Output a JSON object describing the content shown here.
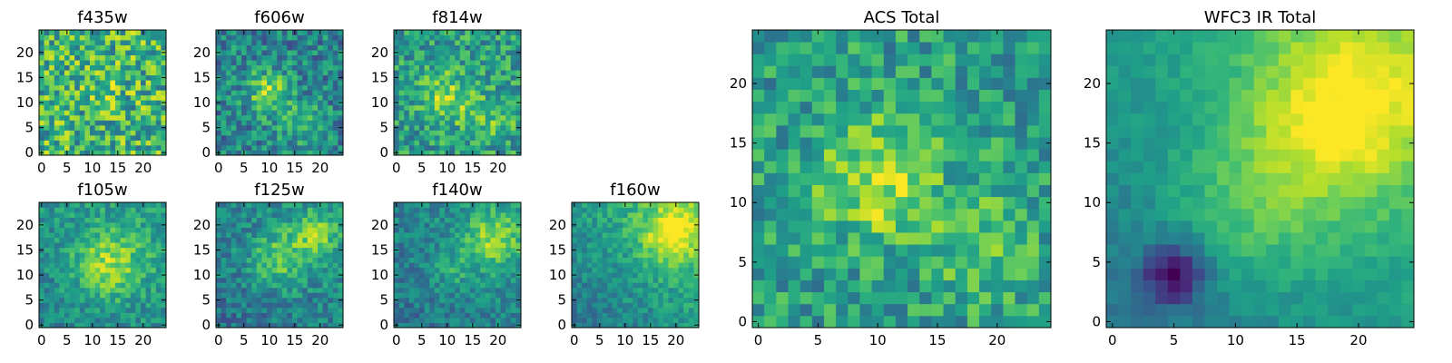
{
  "colormap": {
    "name": "viridis",
    "stops": [
      "#440154",
      "#482878",
      "#3e4989",
      "#31688e",
      "#26828e",
      "#1f9e89",
      "#35b779",
      "#6ece58",
      "#b5de2b",
      "#fde725"
    ]
  },
  "chart_data": [
    {
      "type": "heatmap",
      "title": "f435w",
      "shape": [
        25,
        25
      ],
      "xticks": [
        0,
        5,
        10,
        15,
        20
      ],
      "yticks": [
        0,
        5,
        10,
        15,
        20
      ],
      "xlim": [
        -0.5,
        24.5
      ],
      "ylim": [
        -0.5,
        24.5
      ],
      "field": "noise",
      "peaks": [
        [
          13,
          12,
          2.3,
          0.15
        ]
      ],
      "base": 0.65,
      "noise": 0.3
    },
    {
      "type": "heatmap",
      "title": "f606w",
      "shape": [
        25,
        25
      ],
      "xticks": [
        0,
        5,
        10,
        15,
        20
      ],
      "yticks": [
        0,
        5,
        10,
        15,
        20
      ],
      "xlim": [
        -0.5,
        24.5
      ],
      "ylim": [
        -0.5,
        24.5
      ],
      "field": "blob",
      "peaks": [
        [
          10,
          12,
          3,
          0.4
        ],
        [
          17,
          6,
          3,
          0.25
        ]
      ],
      "base": 0.45,
      "noise": 0.22
    },
    {
      "type": "heatmap",
      "title": "f814w",
      "shape": [
        25,
        25
      ],
      "xticks": [
        0,
        5,
        10,
        15,
        20
      ],
      "yticks": [
        0,
        5,
        10,
        15,
        20
      ],
      "xlim": [
        -0.5,
        24.5
      ],
      "ylim": [
        -0.5,
        24.5
      ],
      "field": "blob",
      "peaks": [
        [
          10,
          11,
          3.5,
          0.3
        ],
        [
          19,
          7,
          3,
          0.2
        ]
      ],
      "base": 0.55,
      "noise": 0.22
    },
    {
      "type": "heatmap",
      "title": "ACS Total",
      "shape": [
        25,
        25
      ],
      "xticks": [
        0,
        5,
        10,
        15,
        20
      ],
      "yticks": [
        0,
        5,
        10,
        15,
        20
      ],
      "xlim": [
        -0.5,
        24.5
      ],
      "ylim": [
        -0.5,
        24.5
      ],
      "field": "blob",
      "peaks": [
        [
          10,
          12,
          3.5,
          0.35
        ],
        [
          19,
          6,
          3,
          0.2
        ]
      ],
      "base": 0.55,
      "noise": 0.2
    },
    {
      "type": "heatmap",
      "title": "f105w",
      "shape": [
        25,
        25
      ],
      "xticks": [
        0,
        5,
        10,
        15,
        20
      ],
      "yticks": [
        0,
        5,
        10,
        15,
        20
      ],
      "xlim": [
        -0.5,
        24.5
      ],
      "ylim": [
        -0.5,
        24.5
      ],
      "field": "diffuse",
      "peaks": [
        [
          13,
          12,
          5,
          0.35
        ]
      ],
      "base": 0.55,
      "noise": 0.15
    },
    {
      "type": "heatmap",
      "title": "f125w",
      "shape": [
        25,
        25
      ],
      "xticks": [
        0,
        5,
        10,
        15,
        20
      ],
      "yticks": [
        0,
        5,
        10,
        15,
        20
      ],
      "xlim": [
        -0.5,
        24.5
      ],
      "ylim": [
        -0.5,
        24.5
      ],
      "field": "diffuse",
      "peaks": [
        [
          12,
          13,
          4,
          0.3
        ],
        [
          19,
          18,
          3,
          0.3
        ]
      ],
      "base": 0.5,
      "noise": 0.16
    },
    {
      "type": "heatmap",
      "title": "f140w",
      "shape": [
        25,
        25
      ],
      "xticks": [
        0,
        5,
        10,
        15,
        20
      ],
      "yticks": [
        0,
        5,
        10,
        15,
        20
      ],
      "xlim": [
        -0.5,
        24.5
      ],
      "ylim": [
        -0.5,
        24.5
      ],
      "field": "diffuse",
      "peaks": [
        [
          19,
          17,
          4,
          0.35
        ],
        [
          11,
          11,
          3,
          0.15
        ]
      ],
      "base": 0.5,
      "noise": 0.14
    },
    {
      "type": "heatmap",
      "title": "f160w",
      "shape": [
        25,
        25
      ],
      "xticks": [
        0,
        5,
        10,
        15,
        20
      ],
      "yticks": [
        0,
        5,
        10,
        15,
        20
      ],
      "xlim": [
        -0.5,
        24.5
      ],
      "ylim": [
        -0.5,
        24.5
      ],
      "field": "gradient",
      "peaks": [
        [
          19,
          18,
          4,
          0.4
        ]
      ],
      "base": 0.5,
      "noise": 0.12
    },
    {
      "type": "heatmap",
      "title": "WFC3 IR Total",
      "shape": [
        25,
        25
      ],
      "xticks": [
        0,
        5,
        10,
        15,
        20
      ],
      "yticks": [
        0,
        5,
        10,
        15,
        20
      ],
      "xlim": [
        -0.5,
        24.5
      ],
      "ylim": [
        -0.5,
        24.5
      ],
      "field": "gradient",
      "peaks": [
        [
          19,
          18,
          5,
          0.4
        ],
        [
          12,
          10,
          5,
          0.2
        ]
      ],
      "base": 0.5,
      "noise": 0.06,
      "hole": [
        [
          5,
          4,
          1.8,
          0.45
        ]
      ]
    }
  ]
}
